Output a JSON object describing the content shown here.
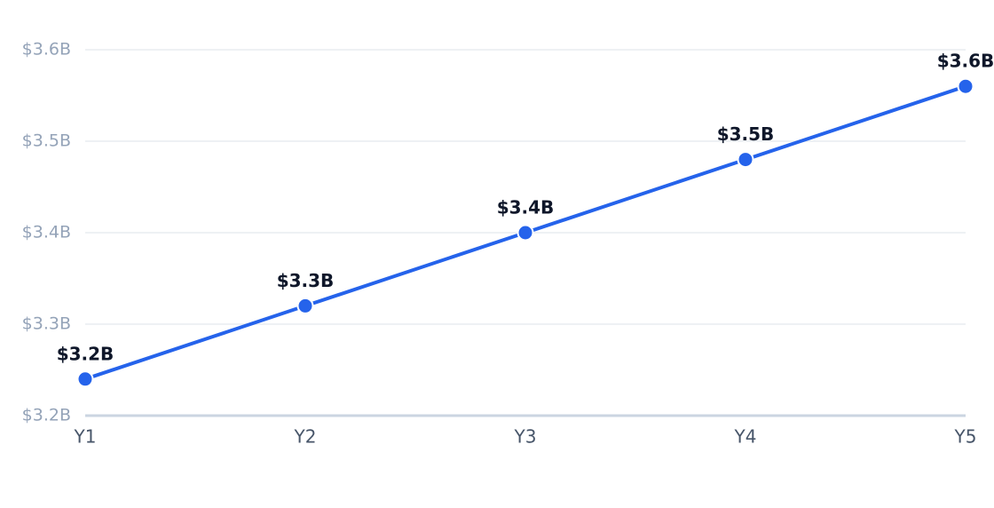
{
  "chart_data": {
    "type": "line",
    "categories": [
      "Y1",
      "Y2",
      "Y3",
      "Y4",
      "Y5"
    ],
    "series": [
      {
        "color": "#2563eb",
        "values": [
          3.24,
          3.32,
          3.4,
          3.48,
          3.56
        ],
        "value_labels": [
          "$3.2B",
          "$3.3B",
          "$3.4B",
          "$3.5B",
          "$3.6B"
        ]
      }
    ],
    "ylim": [
      3.2,
      3.6
    ],
    "yticks": [
      {
        "value": 3.2,
        "label": "$3.2B"
      },
      {
        "value": 3.3,
        "label": "$3.3B"
      },
      {
        "value": 3.4,
        "label": "$3.4B"
      },
      {
        "value": 3.5,
        "label": "$3.5B"
      },
      {
        "value": 3.6,
        "label": "$3.6B"
      }
    ],
    "grid": true
  }
}
